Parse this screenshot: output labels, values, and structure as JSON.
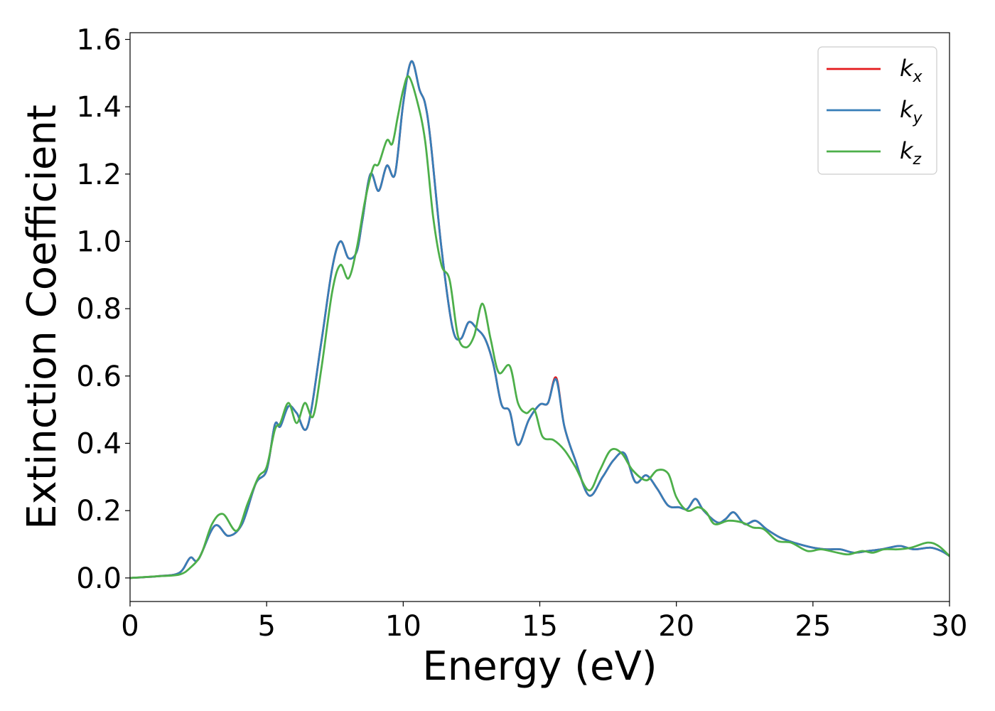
{
  "chart_data": {
    "type": "line",
    "xlabel": "Energy (eV)",
    "ylabel": "Extinction Coefficient",
    "xlim": [
      0,
      30
    ],
    "ylim": [
      -0.07,
      1.62
    ],
    "xticks": [
      0,
      5,
      10,
      15,
      20,
      25,
      30
    ],
    "xtick_labels": [
      "0",
      "5",
      "10",
      "15",
      "20",
      "25",
      "30"
    ],
    "yticks": [
      0.0,
      0.2,
      0.4,
      0.6,
      0.8,
      1.0,
      1.2,
      1.4,
      1.6
    ],
    "ytick_labels": [
      "0.0",
      "0.2",
      "0.4",
      "0.6",
      "0.8",
      "1.0",
      "1.2",
      "1.4",
      "1.6"
    ],
    "grid": false,
    "legend_position": "top-right",
    "series": [
      {
        "name": "kx",
        "label_base": "k",
        "label_sub": "x",
        "color": "#e41a1c",
        "x": [
          0,
          1,
          1.8,
          2.2,
          2.5,
          3.1,
          3.6,
          4.1,
          4.6,
          5.0,
          5.3,
          5.5,
          5.8,
          6.1,
          6.5,
          7.0,
          7.4,
          7.7,
          8.0,
          8.3,
          8.5,
          8.8,
          9.1,
          9.4,
          9.7,
          10.0,
          10.3,
          10.6,
          10.8,
          11.0,
          11.4,
          11.8,
          12.1,
          12.4,
          12.7,
          13.0,
          13.3,
          13.6,
          13.9,
          14.2,
          14.6,
          15.0,
          15.3,
          15.6,
          15.9,
          16.3,
          16.8,
          17.3,
          17.7,
          18.1,
          18.5,
          18.9,
          19.3,
          19.7,
          20.1,
          20.4,
          20.7,
          21.0,
          21.5,
          21.8,
          22.1,
          22.5,
          22.9,
          23.3,
          23.8,
          24.3,
          25.0,
          25.5,
          26.0,
          26.5,
          27.0,
          27.5,
          27.8,
          28.2,
          28.7,
          29.3,
          29.7,
          30.0
        ],
        "y": [
          0.0,
          0.005,
          0.015,
          0.06,
          0.055,
          0.155,
          0.125,
          0.16,
          0.28,
          0.32,
          0.455,
          0.45,
          0.51,
          0.49,
          0.45,
          0.7,
          0.92,
          1.0,
          0.95,
          0.97,
          1.06,
          1.2,
          1.15,
          1.225,
          1.2,
          1.41,
          1.535,
          1.45,
          1.41,
          1.3,
          0.98,
          0.745,
          0.71,
          0.76,
          0.74,
          0.71,
          0.635,
          0.515,
          0.495,
          0.395,
          0.47,
          0.515,
          0.52,
          0.595,
          0.45,
          0.35,
          0.245,
          0.3,
          0.35,
          0.37,
          0.285,
          0.305,
          0.265,
          0.215,
          0.21,
          0.205,
          0.235,
          0.2,
          0.165,
          0.175,
          0.195,
          0.16,
          0.17,
          0.145,
          0.12,
          0.105,
          0.09,
          0.085,
          0.085,
          0.075,
          0.08,
          0.085,
          0.09,
          0.095,
          0.085,
          0.09,
          0.08,
          0.065
        ]
      },
      {
        "name": "ky",
        "label_base": "k",
        "label_sub": "y",
        "color": "#377eb8",
        "x": [
          0,
          1,
          1.8,
          2.2,
          2.5,
          3.1,
          3.6,
          4.1,
          4.6,
          5.0,
          5.3,
          5.5,
          5.8,
          6.1,
          6.5,
          7.0,
          7.4,
          7.7,
          8.0,
          8.3,
          8.5,
          8.8,
          9.1,
          9.4,
          9.7,
          10.0,
          10.3,
          10.6,
          10.8,
          11.0,
          11.4,
          11.8,
          12.1,
          12.4,
          12.7,
          13.0,
          13.3,
          13.6,
          13.9,
          14.2,
          14.6,
          15.0,
          15.3,
          15.6,
          15.9,
          16.3,
          16.8,
          17.3,
          17.7,
          18.1,
          18.5,
          18.9,
          19.3,
          19.7,
          20.1,
          20.4,
          20.7,
          21.0,
          21.5,
          21.8,
          22.1,
          22.5,
          22.9,
          23.3,
          23.8,
          24.3,
          25.0,
          25.5,
          26.0,
          26.5,
          27.0,
          27.5,
          27.8,
          28.2,
          28.7,
          29.3,
          29.7,
          30.0
        ],
        "y": [
          0.0,
          0.005,
          0.015,
          0.06,
          0.055,
          0.155,
          0.125,
          0.16,
          0.28,
          0.32,
          0.455,
          0.45,
          0.51,
          0.49,
          0.45,
          0.7,
          0.92,
          1.0,
          0.95,
          0.97,
          1.06,
          1.2,
          1.15,
          1.225,
          1.2,
          1.41,
          1.535,
          1.45,
          1.41,
          1.3,
          0.98,
          0.745,
          0.71,
          0.76,
          0.74,
          0.71,
          0.635,
          0.515,
          0.495,
          0.395,
          0.47,
          0.515,
          0.52,
          0.59,
          0.45,
          0.35,
          0.245,
          0.3,
          0.35,
          0.37,
          0.285,
          0.305,
          0.265,
          0.215,
          0.21,
          0.205,
          0.235,
          0.2,
          0.165,
          0.175,
          0.195,
          0.16,
          0.17,
          0.145,
          0.12,
          0.105,
          0.09,
          0.085,
          0.085,
          0.075,
          0.08,
          0.085,
          0.09,
          0.095,
          0.085,
          0.09,
          0.08,
          0.065
        ]
      },
      {
        "name": "kz",
        "label_base": "k",
        "label_sub": "z",
        "color": "#4daf4a",
        "x": [
          0,
          1,
          1.8,
          2.2,
          2.6,
          3.0,
          3.4,
          3.9,
          4.3,
          4.7,
          5.0,
          5.3,
          5.5,
          5.8,
          6.1,
          6.4,
          6.7,
          7.0,
          7.4,
          7.7,
          8.0,
          8.3,
          8.6,
          8.9,
          9.1,
          9.4,
          9.6,
          9.8,
          10.0,
          10.2,
          10.5,
          10.8,
          11.1,
          11.4,
          11.7,
          12.0,
          12.3,
          12.6,
          12.9,
          13.2,
          13.5,
          13.9,
          14.2,
          14.5,
          14.8,
          15.1,
          15.5,
          15.9,
          16.3,
          16.8,
          17.2,
          17.6,
          18.0,
          18.4,
          18.9,
          19.3,
          19.7,
          20.0,
          20.4,
          20.8,
          21.1,
          21.4,
          21.9,
          22.4,
          22.8,
          23.2,
          23.7,
          24.2,
          24.8,
          25.3,
          25.9,
          26.3,
          26.8,
          27.2,
          27.6,
          28.1,
          28.6,
          29.2,
          29.6,
          30.0
        ],
        "y": [
          0.0,
          0.005,
          0.01,
          0.03,
          0.07,
          0.16,
          0.19,
          0.14,
          0.22,
          0.3,
          0.33,
          0.44,
          0.46,
          0.52,
          0.46,
          0.52,
          0.48,
          0.62,
          0.85,
          0.93,
          0.89,
          0.98,
          1.12,
          1.22,
          1.23,
          1.3,
          1.29,
          1.37,
          1.45,
          1.49,
          1.42,
          1.3,
          1.07,
          0.93,
          0.885,
          0.72,
          0.685,
          0.72,
          0.815,
          0.71,
          0.61,
          0.63,
          0.52,
          0.49,
          0.5,
          0.42,
          0.41,
          0.38,
          0.33,
          0.26,
          0.32,
          0.38,
          0.37,
          0.32,
          0.29,
          0.32,
          0.31,
          0.24,
          0.2,
          0.21,
          0.195,
          0.16,
          0.17,
          0.165,
          0.15,
          0.145,
          0.11,
          0.105,
          0.08,
          0.085,
          0.075,
          0.07,
          0.08,
          0.075,
          0.085,
          0.085,
          0.09,
          0.105,
          0.095,
          0.065
        ]
      }
    ]
  }
}
